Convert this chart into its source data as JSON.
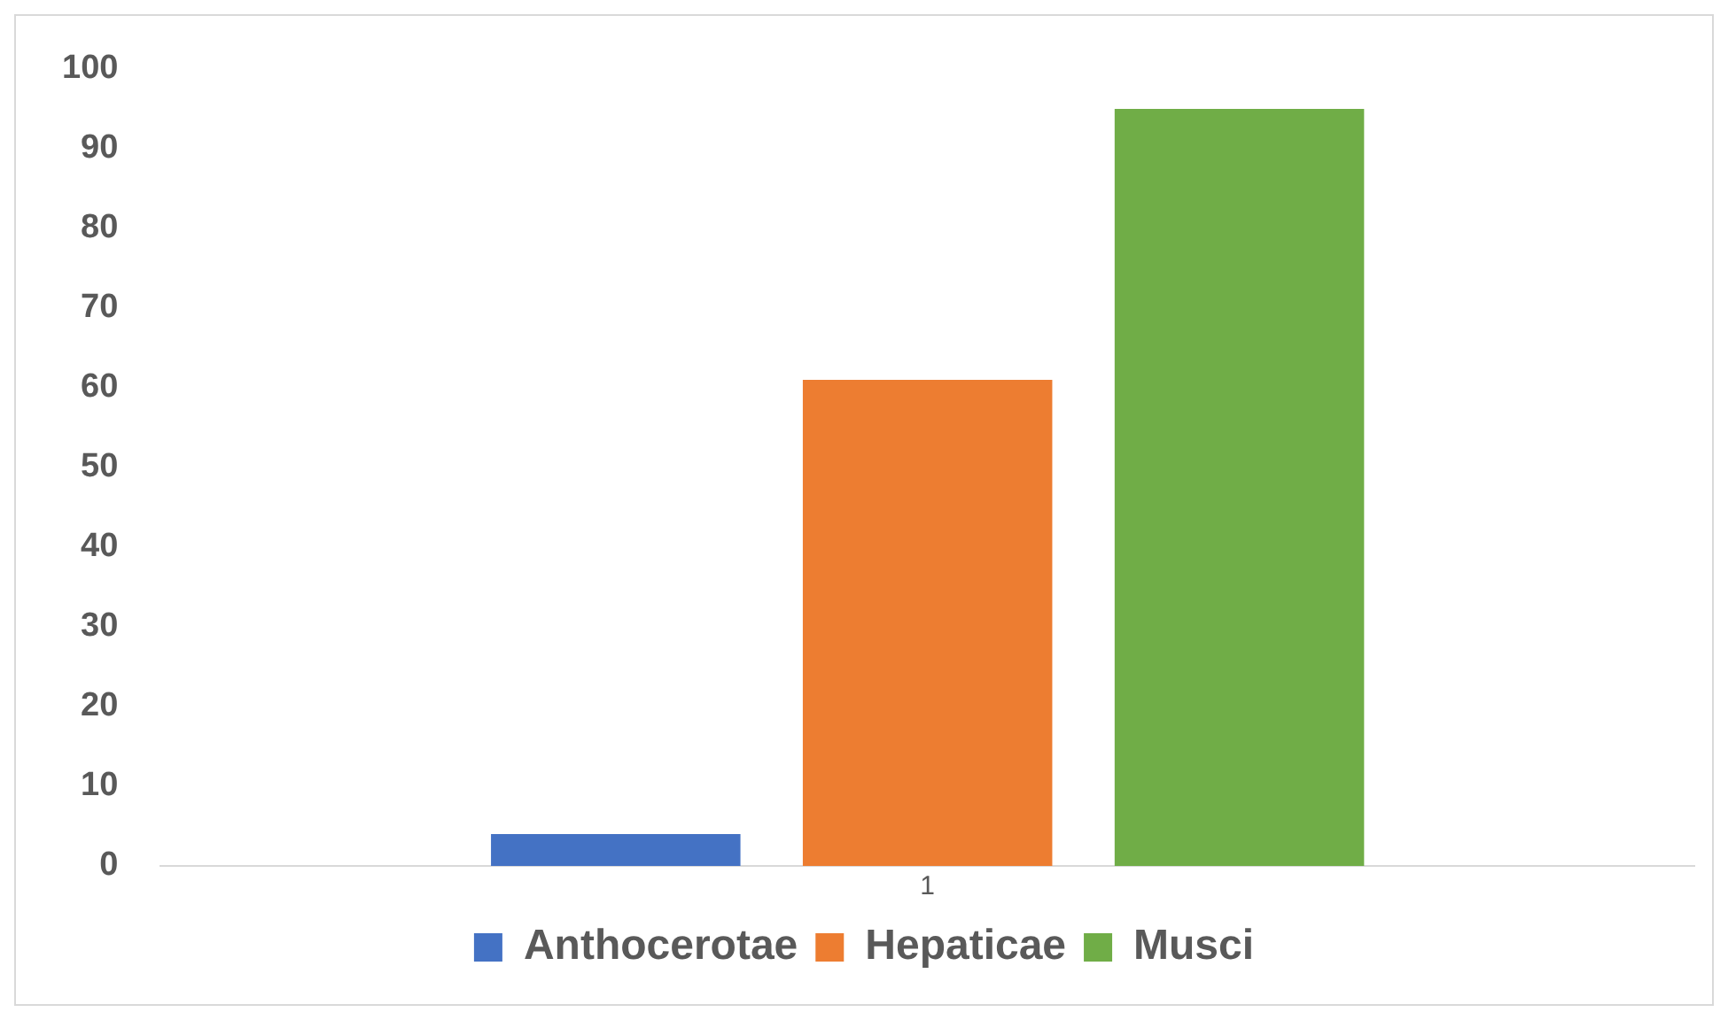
{
  "chart_data": {
    "type": "bar",
    "categories": [
      "1"
    ],
    "series": [
      {
        "name": "Anthocerotae",
        "color": "#4472c4",
        "values": [
          4
        ]
      },
      {
        "name": "Hepaticae",
        "color": "#ed7d31",
        "values": [
          61
        ]
      },
      {
        "name": "Musci",
        "color": "#70ad47",
        "values": [
          95
        ]
      }
    ],
    "ylim": [
      0,
      100
    ],
    "yticks": [
      0,
      10,
      20,
      30,
      40,
      50,
      60,
      70,
      80,
      90,
      100
    ],
    "grid": false,
    "legend": "bottom"
  }
}
